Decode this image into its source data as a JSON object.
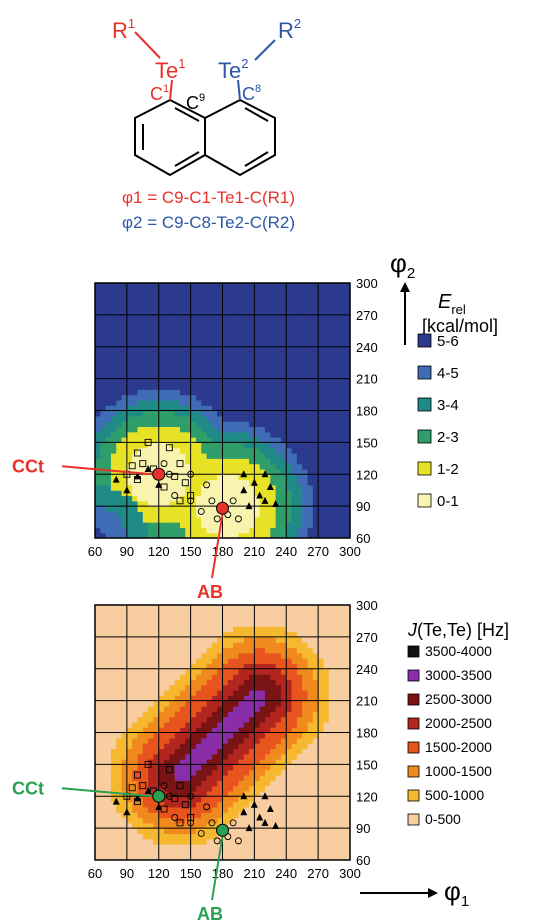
{
  "molecule": {
    "r1": "R",
    "r1_sup": "1",
    "te1": "Te",
    "te1_sup": "1",
    "c1": "C",
    "c1_sup": "1",
    "c9": "C",
    "c9_sup": "9",
    "te2": "Te",
    "te2_sup": "2",
    "r2": "R",
    "r2_sup": "2",
    "c8": "C",
    "c8_sup": "8",
    "phi1_def": "φ1 = C9-C1-Te1-C(R1)",
    "phi2_def": "φ2 = C9-C8-Te2-C(R2)",
    "colors": {
      "te1": "#e8312a",
      "te2": "#2e57a8"
    }
  },
  "axis_phi1": {
    "symbol": "φ",
    "sub": "1"
  },
  "axis_phi2": {
    "symbol": "φ",
    "sub": "2"
  },
  "chart_data": [
    {
      "type": "heatmap",
      "title": "",
      "xlabel": "φ1",
      "ylabel": "φ2",
      "xlim": [
        60,
        300
      ],
      "ylim": [
        60,
        300
      ],
      "x_ticks": [
        60,
        90,
        120,
        150,
        180,
        210,
        240,
        270,
        300
      ],
      "y_ticks": [
        60,
        90,
        120,
        150,
        180,
        210,
        240,
        270,
        300
      ],
      "grid": true,
      "legend_title": "Erel [kcal/mol]",
      "legend_title_main": "E",
      "legend_title_sub": "rel",
      "legend_title_unit": "[kcal/mol]",
      "legend": [
        {
          "label": "5-6",
          "color": "#2b3a8c"
        },
        {
          "label": "4-5",
          "color": "#3f6cb5"
        },
        {
          "label": "3-4",
          "color": "#1f8a86"
        },
        {
          "label": "2-3",
          "color": "#2f9e6a"
        },
        {
          "label": "1-2",
          "color": "#e8e227"
        },
        {
          "label": "0-1",
          "color": "#f9f3b0"
        }
      ],
      "legend_placement": "right",
      "field": {
        "minima": [
          [
            120,
            120
          ],
          [
            185,
            90
          ]
        ],
        "center": [
          180,
          180
        ],
        "center_value": 3.6
      },
      "annotations": [
        {
          "label": "CCt",
          "x": 120,
          "y": 120,
          "color": "#e8312a"
        },
        {
          "label": "AB",
          "x": 180,
          "y": 88,
          "color": "#e8312a"
        }
      ],
      "exp_points": {
        "squares": [
          [
            90,
            120
          ],
          [
            95,
            128
          ],
          [
            100,
            115
          ],
          [
            100,
            140
          ],
          [
            105,
            130
          ],
          [
            110,
            150
          ],
          [
            115,
            125
          ],
          [
            125,
            108
          ],
          [
            130,
            145
          ],
          [
            135,
            118
          ],
          [
            140,
            130
          ],
          [
            145,
            112
          ],
          [
            150,
            100
          ],
          [
            140,
            95
          ]
        ],
        "triangles": [
          [
            80,
            115
          ],
          [
            90,
            105
          ],
          [
            100,
            118
          ],
          [
            110,
            125
          ],
          [
            120,
            110
          ],
          [
            200,
            105
          ],
          [
            205,
            90
          ],
          [
            210,
            112
          ],
          [
            215,
            100
          ],
          [
            220,
            95
          ],
          [
            225,
            108
          ],
          [
            230,
            92
          ],
          [
            220,
            120
          ],
          [
            200,
            120
          ]
        ],
        "circles": [
          [
            125,
            130
          ],
          [
            130,
            120
          ],
          [
            135,
            100
          ],
          [
            150,
            95
          ],
          [
            160,
            85
          ],
          [
            170,
            95
          ],
          [
            175,
            78
          ],
          [
            185,
            82
          ],
          [
            190,
            95
          ],
          [
            195,
            78
          ],
          [
            165,
            110
          ],
          [
            150,
            120
          ]
        ]
      }
    },
    {
      "type": "heatmap",
      "title": "",
      "xlabel": "φ1",
      "ylabel": "φ2",
      "xlim": [
        60,
        300
      ],
      "ylim": [
        60,
        300
      ],
      "x_ticks": [
        60,
        90,
        120,
        150,
        180,
        210,
        240,
        270,
        300
      ],
      "y_ticks": [
        60,
        90,
        120,
        150,
        180,
        210,
        240,
        270,
        300
      ],
      "grid": true,
      "legend_title": "J(Te,Te) [Hz]",
      "legend": [
        {
          "label": "3500-4000",
          "color": "#111111"
        },
        {
          "label": "3000-3500",
          "color": "#8a2da8"
        },
        {
          "label": "2500-3000",
          "color": "#7a1414"
        },
        {
          "label": "2000-2500",
          "color": "#b3261e"
        },
        {
          "label": "1500-2000",
          "color": "#e8541e"
        },
        {
          "label": "1000-1500",
          "color": "#f08a1f"
        },
        {
          "label": "500-1000",
          "color": "#f5b82e"
        },
        {
          "label": "0-500",
          "color": "#f8cda0"
        }
      ],
      "legend_placement": "right",
      "field": {
        "ridge_from": [
          140,
          140
        ],
        "ridge_to": [
          215,
          215
        ],
        "peak_value": 3300
      },
      "annotations": [
        {
          "label": "CCt",
          "x": 120,
          "y": 120,
          "color": "#2aa052"
        },
        {
          "label": "AB",
          "x": 180,
          "y": 88,
          "color": "#2aa052"
        }
      ],
      "exp_points": {
        "squares": [
          [
            90,
            120
          ],
          [
            95,
            128
          ],
          [
            100,
            115
          ],
          [
            100,
            140
          ],
          [
            105,
            130
          ],
          [
            110,
            150
          ],
          [
            115,
            125
          ],
          [
            125,
            108
          ],
          [
            130,
            145
          ],
          [
            135,
            118
          ],
          [
            140,
            130
          ],
          [
            145,
            112
          ],
          [
            150,
            100
          ],
          [
            140,
            95
          ]
        ],
        "triangles": [
          [
            80,
            115
          ],
          [
            90,
            105
          ],
          [
            100,
            118
          ],
          [
            110,
            125
          ],
          [
            120,
            110
          ],
          [
            200,
            105
          ],
          [
            205,
            90
          ],
          [
            210,
            112
          ],
          [
            215,
            100
          ],
          [
            220,
            95
          ],
          [
            225,
            108
          ],
          [
            230,
            92
          ],
          [
            220,
            120
          ],
          [
            200,
            120
          ]
        ],
        "circles": [
          [
            125,
            130
          ],
          [
            130,
            120
          ],
          [
            135,
            100
          ],
          [
            150,
            95
          ],
          [
            160,
            85
          ],
          [
            170,
            95
          ],
          [
            175,
            78
          ],
          [
            185,
            82
          ],
          [
            190,
            95
          ],
          [
            195,
            78
          ],
          [
            165,
            110
          ],
          [
            150,
            120
          ]
        ]
      }
    }
  ]
}
